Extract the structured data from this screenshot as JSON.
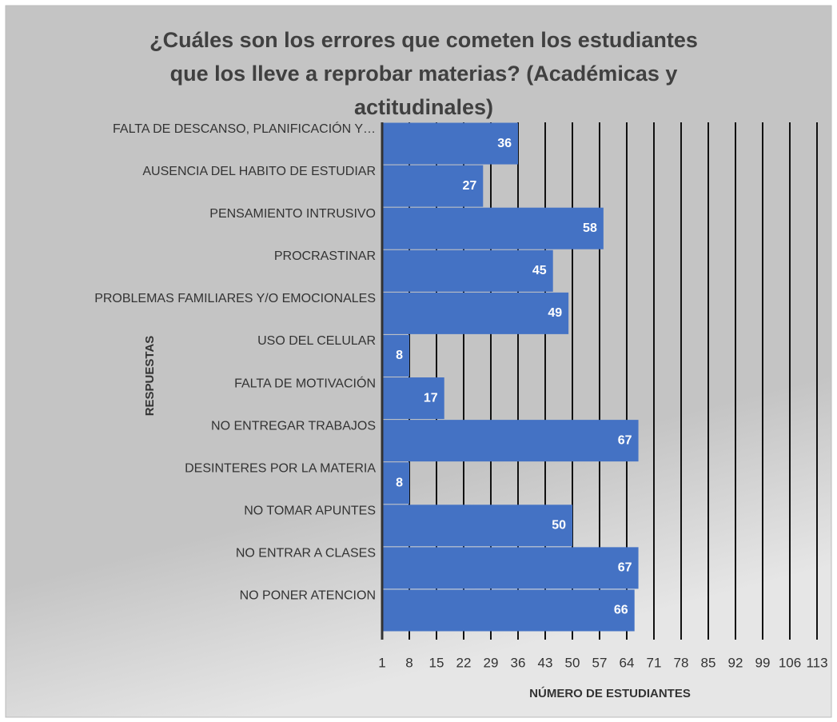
{
  "chart_data": {
    "type": "barh",
    "title": "¿Cuáles son los errores que cometen los estudiantes que los lleve a reprobar materias? (Académicas y actitudinales)",
    "xlabel": "NÚMERO DE ESTUDIANTES",
    "ylabel": "RESPUESTAS",
    "categories": [
      "FALTA DE DESCANSO, PLANIFICACIÓN Y…",
      "AUSENCIA DEL HABITO DE ESTUDIAR",
      "PENSAMIENTO INTRUSIVO",
      "PROCRASTINAR",
      "PROBLEMAS FAMILIARES Y/O EMOCIONALES",
      "USO DEL CELULAR",
      "FALTA DE MOTIVACIÓN",
      "NO ENTREGAR TRABAJOS",
      "DESINTERES POR LA MATERIA",
      "NO TOMAR APUNTES",
      "NO ENTRAR A CLASES",
      "NO PONER ATENCION"
    ],
    "values": [
      36,
      27,
      58,
      45,
      49,
      8,
      17,
      67,
      8,
      50,
      67,
      66
    ],
    "color": "#4472c4",
    "xlim": [
      1,
      113
    ],
    "xticks": [
      1,
      8,
      15,
      22,
      29,
      36,
      43,
      50,
      57,
      64,
      71,
      78,
      85,
      92,
      99,
      106,
      113
    ],
    "grid": true
  }
}
